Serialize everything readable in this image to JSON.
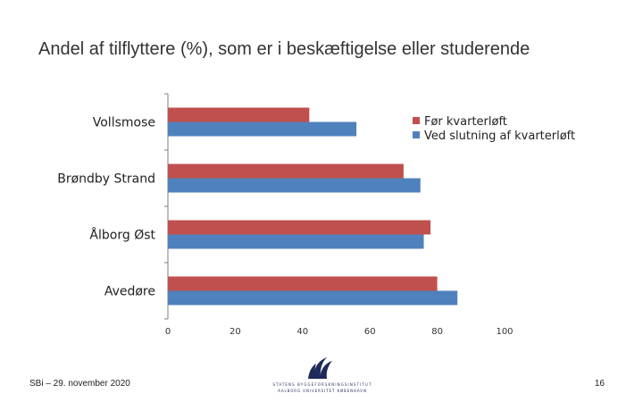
{
  "title": "Andel af tilflyttere (%), som er i beskæftigelse eller studerende",
  "chart_data": {
    "type": "bar",
    "orientation": "horizontal",
    "categories": [
      "Vollsmose",
      "Brøndby Strand",
      "Ålborg Øst",
      "Avedøre"
    ],
    "series": [
      {
        "name": "Før kvarterløft",
        "color": "#c0504d",
        "values": [
          42,
          70,
          78,
          80
        ]
      },
      {
        "name": "Ved slutning af kvarterløft",
        "color": "#4f81bd",
        "values": [
          56,
          75,
          76,
          86
        ]
      }
    ],
    "xlim": [
      0,
      100
    ],
    "xticks": [
      "0",
      "20",
      "40",
      "60",
      "80",
      "100"
    ],
    "grid": false,
    "legend_position": "top-right"
  },
  "footer": {
    "left": "SBi – 29. november 2020",
    "page": "16",
    "logo_line1": "STATENS BYGGEFORSKNINGSINSTITUT",
    "logo_line2": "AALBORG UNIVERSITET KØBENHAVN"
  }
}
